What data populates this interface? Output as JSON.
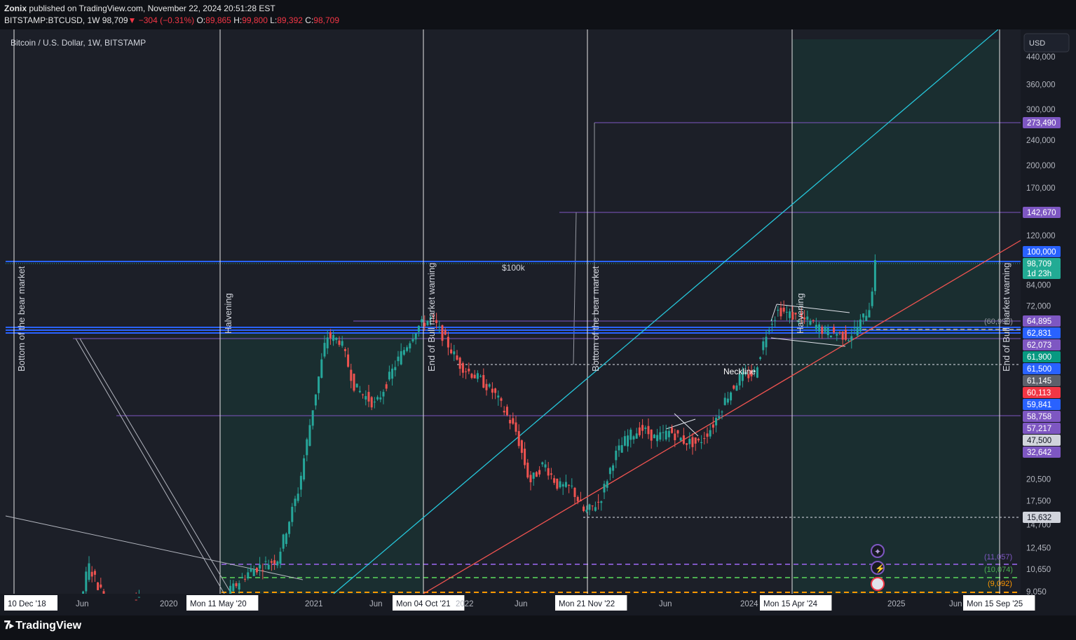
{
  "header": {
    "author": "Zonix",
    "published_text": "published on TradingView.com, November 22, 2024 20:51:28 EST",
    "symbol": "BITSTAMP:BTCUSD, 1W",
    "last": "98,709",
    "change": "−304 (−0.31%)",
    "o_label": "O:",
    "o_value": "89,865",
    "h_label": "H:",
    "h_value": "99,800",
    "l_label": "L:",
    "l_value": "89,392",
    "c_label": "C:",
    "c_value": "98,709"
  },
  "chart_data": {
    "type": "candlestick",
    "title": "Bitcoin / U.S. Dollar, 1W, BITSTAMP",
    "currency_button": "USD",
    "y_scale": "log",
    "y_ticks": [
      440000,
      360000,
      300000,
      240000,
      200000,
      170000,
      120000,
      84000,
      72000,
      20500,
      17500,
      14700,
      12450,
      10650,
      9050
    ],
    "y_tick_labels": [
      "440,000",
      "360,000",
      "300,000",
      "240,000",
      "200,000",
      "170,000",
      "120,000",
      "84,000",
      "72,000",
      "20,500",
      "17,500",
      "14,700",
      "12,450",
      "10,650",
      "9,050"
    ],
    "x_labels": [
      "10 Dec '18",
      "Jun",
      "2020",
      "Mon 11 May '20",
      "2021",
      "Jun",
      "Mon 04 Oct '21",
      "2022",
      "Jun",
      "Mon 21 Nov '22",
      "Jun",
      "2024",
      "Mon 15 Apr '24",
      "2025",
      "Jun",
      "Mon 15 Sep '25"
    ],
    "price_badges": [
      {
        "text": "273,490",
        "color": "#7e57c2"
      },
      {
        "text": "142,670",
        "color": "#7e57c2"
      },
      {
        "text": "100,000",
        "color": "#2962ff"
      },
      {
        "text": "98,709",
        "color": "#22ab94"
      },
      {
        "text": "1d 23h",
        "color": "#22ab94"
      },
      {
        "text": "64,895",
        "color": "#7e57c2"
      },
      {
        "text": "62,831",
        "color": "#2962ff"
      },
      {
        "text": "62,073",
        "color": "#7e57c2"
      },
      {
        "text": "61,900",
        "color": "#089981"
      },
      {
        "text": "61,500",
        "color": "#2962ff"
      },
      {
        "text": "61,145",
        "color": "#5d606b"
      },
      {
        "text": "60,113",
        "color": "#f23645"
      },
      {
        "text": "59,841",
        "color": "#2962ff"
      },
      {
        "text": "58,758",
        "color": "#7e57c2"
      },
      {
        "text": "57,217",
        "color": "#7e57c2"
      },
      {
        "text": "47,500",
        "color": "#d1d4dc"
      },
      {
        "text": "32,642",
        "color": "#7e57c2"
      },
      {
        "text": "15,632",
        "color": "#d1d4dc"
      }
    ],
    "dashed_levels": [
      {
        "label": "(11,057)",
        "color": "#7e57c2"
      },
      {
        "label": "(10,074)",
        "color": "#4caf50"
      },
      {
        "label": "(9,092)",
        "color": "#ff9800"
      },
      {
        "label": "(60,998)",
        "color": "#9598a1"
      }
    ],
    "annotations": [
      "Bottom of the bear market",
      "Halvening",
      "End of Bull market warning",
      "Bottom of the bear market",
      "Halvening",
      "End of Bull market warning",
      "$100k",
      "Neckline"
    ],
    "last_price": 98709,
    "high": 99800,
    "low": 89392
  },
  "footer": {
    "brand": "TradingView"
  }
}
